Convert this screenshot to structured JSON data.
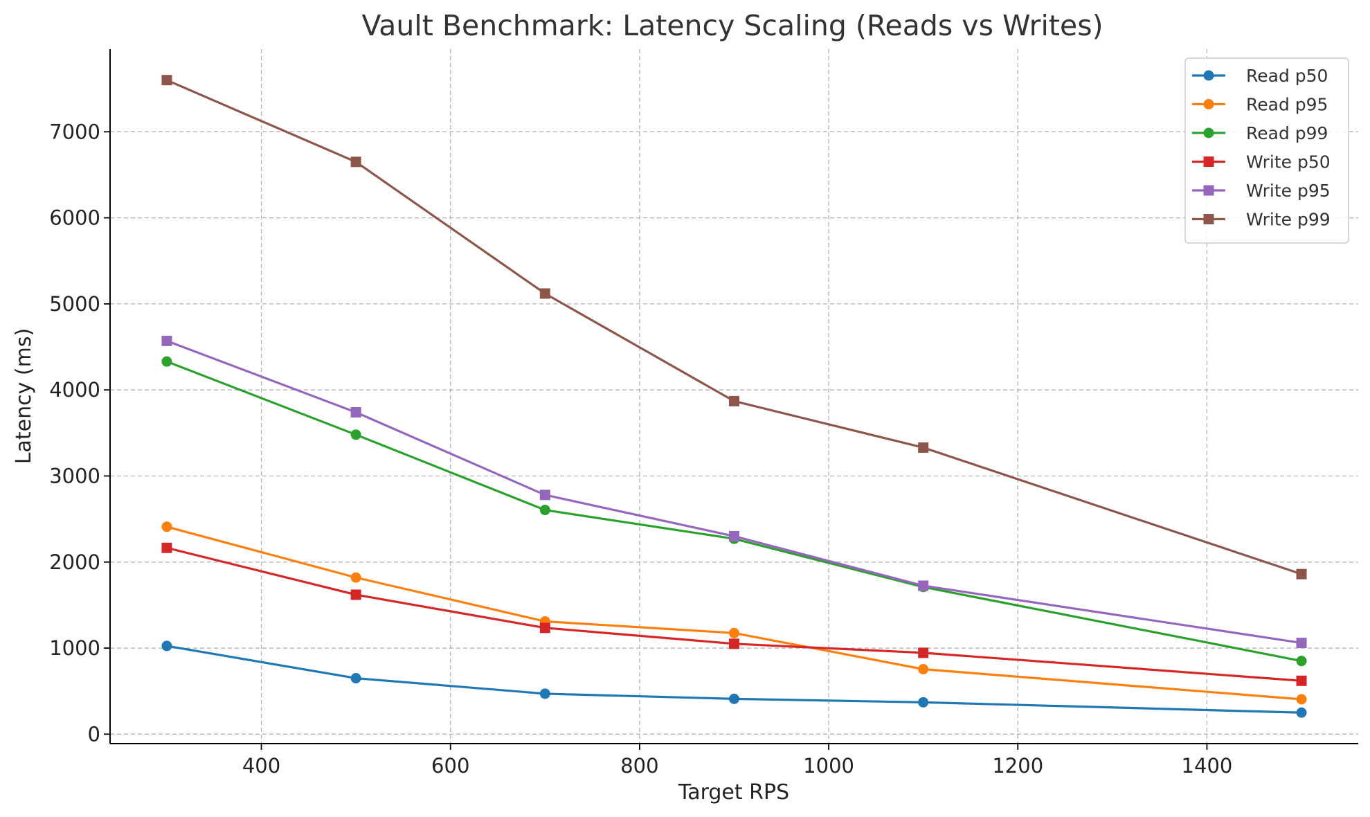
{
  "chart_data": {
    "type": "line",
    "title": "Vault Benchmark: Latency Scaling (Reads vs Writes)",
    "xlabel": "Target RPS",
    "ylabel": "Latency (ms)",
    "x": [
      300,
      500,
      700,
      900,
      1100,
      1500
    ],
    "xlim": [
      240,
      1560
    ],
    "ylim": [
      -110,
      7960
    ],
    "xticks": [
      400,
      600,
      800,
      1000,
      1200,
      1400
    ],
    "yticks": [
      0,
      1000,
      2000,
      3000,
      4000,
      5000,
      6000,
      7000
    ],
    "grid": true,
    "legend_position": "top-right",
    "series": [
      {
        "name": "Read p50",
        "color": "#1f77b4",
        "marker": "circle",
        "values": [
          1025,
          650,
          470,
          410,
          370,
          250
        ]
      },
      {
        "name": "Read p95",
        "color": "#ff7f0e",
        "marker": "circle",
        "values": [
          2410,
          1820,
          1310,
          1175,
          755,
          405
        ]
      },
      {
        "name": "Read p99",
        "color": "#2ca02c",
        "marker": "circle",
        "values": [
          4330,
          3480,
          2605,
          2270,
          1710,
          850
        ]
      },
      {
        "name": "Write p50",
        "color": "#d62728",
        "marker": "square",
        "values": [
          2165,
          1620,
          1235,
          1050,
          945,
          620
        ]
      },
      {
        "name": "Write p95",
        "color": "#9467bd",
        "marker": "square",
        "values": [
          4570,
          3740,
          2780,
          2300,
          1725,
          1060
        ]
      },
      {
        "name": "Write p99",
        "color": "#8c564b",
        "marker": "square",
        "values": [
          7600,
          6650,
          5120,
          3870,
          3330,
          1860
        ]
      }
    ]
  }
}
